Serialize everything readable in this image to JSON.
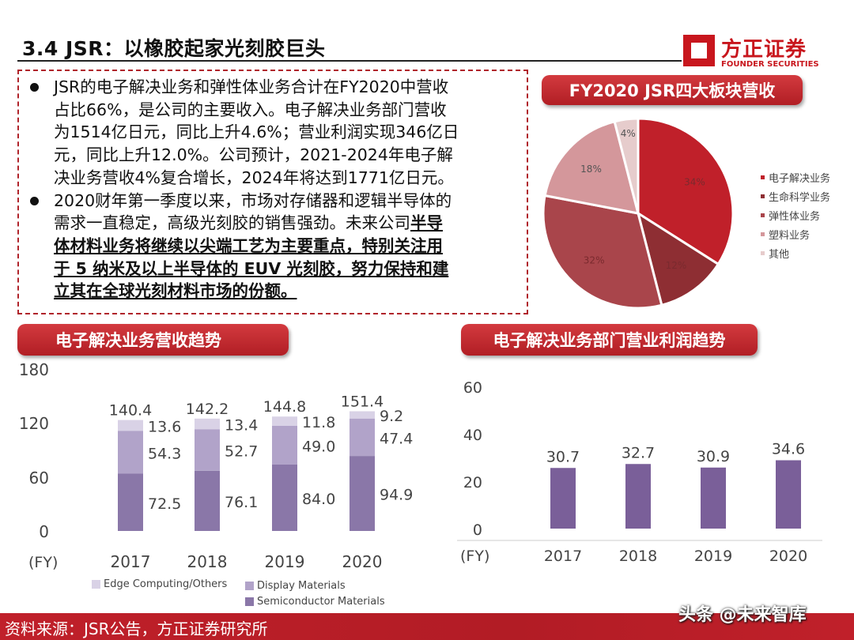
{
  "header": {
    "title": "3.4 JSR：以橡胶起家光刻胶巨头",
    "logo_cn": "方正证券",
    "logo_en": "FOUNDER SECURITIES"
  },
  "textbox": {
    "lines": [
      {
        "bullet": true,
        "segments": [
          {
            "text": "JSR的电子解决业务和弹性体业务合计在FY2020中营收",
            "emph": false
          }
        ]
      },
      {
        "bullet": false,
        "segments": [
          {
            "text": "占比66%，是公司的主要收入。电子解决业务部门营收",
            "emph": false
          }
        ]
      },
      {
        "bullet": false,
        "segments": [
          {
            "text": "为1514亿日元，同比上升4.6%；营业利润实现346亿日",
            "emph": false
          }
        ]
      },
      {
        "bullet": false,
        "segments": [
          {
            "text": "元，同比上升12.0%。公司预计，2021-2024年电子解",
            "emph": false
          }
        ]
      },
      {
        "bullet": false,
        "segments": [
          {
            "text": "决业务营收4%复合增长，2024年将达到1771亿日元。",
            "emph": false
          }
        ]
      },
      {
        "bullet": true,
        "segments": [
          {
            "text": "2020财年第一季度以来，市场对存储器和逻辑半导体的",
            "emph": false
          }
        ]
      },
      {
        "bullet": false,
        "segments": [
          {
            "text": "需求一直稳定，高级光刻胶的销售强劲。未来公司",
            "emph": false
          },
          {
            "text": "半导",
            "emph": true
          }
        ]
      },
      {
        "bullet": false,
        "segments": [
          {
            "text": "体材料业务将继续以尖端工艺为主要重点，特别关注用",
            "emph": true
          }
        ]
      },
      {
        "bullet": false,
        "segments": [
          {
            "text": "于 5 纳米及以上半导体的 EUV 光刻胶，努力保持和建",
            "emph": true
          }
        ]
      },
      {
        "bullet": false,
        "segments": [
          {
            "text": "立其在全球光刻材料市场的份额。",
            "emph": true
          }
        ]
      }
    ]
  },
  "chart_data": [
    {
      "type": "pie",
      "title": "FY2020 JSR四大板块营收",
      "slices": [
        {
          "label": "电子解决业务",
          "value": 34,
          "text": "34%",
          "color": "#c0202a"
        },
        {
          "label": "生命科学业务",
          "value": 12,
          "text": "12%",
          "color": "#8e2e33"
        },
        {
          "label": "弹性体业务",
          "value": 32,
          "text": "32%",
          "color": "#a9454b"
        },
        {
          "label": "塑料业务",
          "value": 18,
          "text": "18%",
          "color": "#d4979b"
        },
        {
          "label": "其他",
          "value": 4,
          "text": "4%",
          "color": "#e6cccc"
        }
      ],
      "legend": "right"
    },
    {
      "type": "bar",
      "stacked": true,
      "title": "电子解决业务营收趋势",
      "xlabel": "(FY)",
      "categories": [
        "2017",
        "2018",
        "2019",
        "2020"
      ],
      "yticks": [
        "0",
        "60",
        "120",
        "180"
      ],
      "series": [
        {
          "name": "Semiconductor Materials",
          "values": [
            72.5,
            76.1,
            84.0,
            94.9
          ],
          "labels": [
            "72.5",
            "76.1",
            "84.0",
            "94.9"
          ],
          "color": "#8a77a8"
        },
        {
          "name": "Display Materials",
          "values": [
            54.3,
            52.7,
            49.0,
            47.4
          ],
          "labels": [
            "54.3",
            "52.7",
            "49.0",
            "47.4"
          ],
          "color": "#b1a3c9"
        },
        {
          "name": "Edge Computing/Others",
          "values": [
            13.6,
            13.4,
            11.8,
            9.2
          ],
          "labels": [
            "13.6",
            "13.4",
            "11.8",
            "9.2"
          ],
          "color": "#d9d2e6"
        }
      ],
      "totals": [
        "140.4",
        "142.2",
        "144.8",
        "151.4"
      ],
      "legend": "bottom"
    },
    {
      "type": "bar",
      "title": "电子解决业务部门营业利润趋势",
      "xlabel": "(FY)",
      "categories": [
        "2017",
        "2018",
        "2019",
        "2020"
      ],
      "values": [
        30.7,
        32.7,
        30.9,
        34.6
      ],
      "labels": [
        "30.7",
        "32.7",
        "30.9",
        "34.6"
      ],
      "yticks": [
        "0",
        "20",
        "40",
        "60"
      ],
      "color": "#7a5f99"
    }
  ],
  "footer": {
    "source": "资料来源：JSR公告，方正证券研究所",
    "watermark": "头条 @未来智库"
  }
}
